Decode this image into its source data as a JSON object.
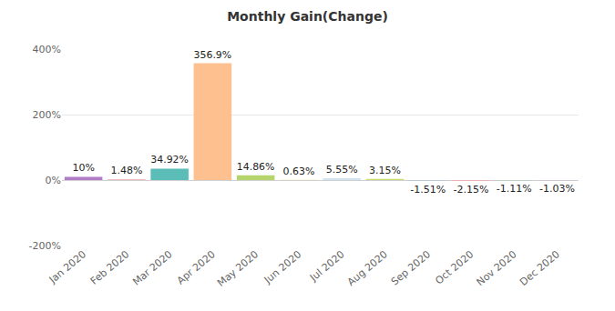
{
  "chart_data": {
    "type": "bar",
    "title": "Monthly Gain(Change)",
    "categories": [
      "Jan 2020",
      "Feb 2020",
      "Mar 2020",
      "Apr 2020",
      "May 2020",
      "Jun 2020",
      "Jul 2020",
      "Aug 2020",
      "Sep 2020",
      "Oct 2020",
      "Nov 2020",
      "Dec 2020"
    ],
    "values": [
      10,
      1.48,
      34.92,
      356.9,
      14.86,
      0.63,
      5.55,
      3.15,
      -1.51,
      -2.15,
      -1.11,
      -1.03
    ],
    "value_labels": [
      "10%",
      "1.48%",
      "34.92%",
      "356.9%",
      "14.86%",
      "0.63%",
      "5.55%",
      "3.15%",
      "-1.51%",
      "-2.15%",
      "-1.11%",
      "-1.03%"
    ],
    "colors": [
      "#b07cc6",
      "#e07b7b",
      "#5bbcb8",
      "#ffc090",
      "#b5d46b",
      "#f3e28a",
      "#cfe4f0",
      "#c7dd6a",
      "#9fc5e8",
      "#f4a6a6",
      "#a8d8b9",
      "#d9b3e6"
    ],
    "ylim": [
      -200,
      400
    ],
    "yticks": [
      {
        "value": -200,
        "label": "-200%"
      },
      {
        "value": 0,
        "label": "0%"
      },
      {
        "value": 200,
        "label": "200%"
      },
      {
        "value": 400,
        "label": "400%"
      }
    ],
    "grid": true,
    "data_labels": true
  }
}
